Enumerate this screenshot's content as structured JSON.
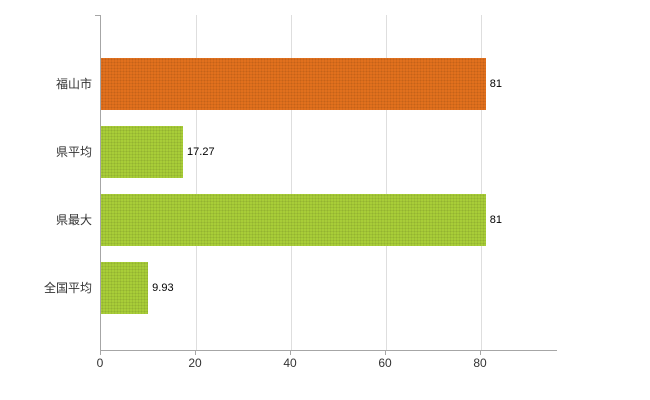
{
  "chart_data": {
    "type": "bar",
    "orientation": "horizontal",
    "title": "",
    "categories": [
      "福山市",
      "県平均",
      "県最大",
      "全国平均"
    ],
    "values": [
      81,
      17.27,
      81,
      9.93
    ],
    "value_labels": [
      "81",
      "17.27",
      "81",
      "9.93"
    ],
    "bar_colors": [
      "#e2711d",
      "#a9ce38",
      "#a9ce38",
      "#a9ce38"
    ],
    "x_ticks": [
      "0",
      "20",
      "40",
      "60",
      "80"
    ],
    "x_tick_values": [
      0,
      20,
      40,
      60,
      80
    ],
    "xlim": [
      0,
      96
    ],
    "grid": "vertical",
    "legend": "none"
  },
  "style": {
    "axis_color": "#a6a6a6",
    "grid_color": "#dedede",
    "category_label_color": "#333333",
    "value_label_color": "#000000"
  }
}
